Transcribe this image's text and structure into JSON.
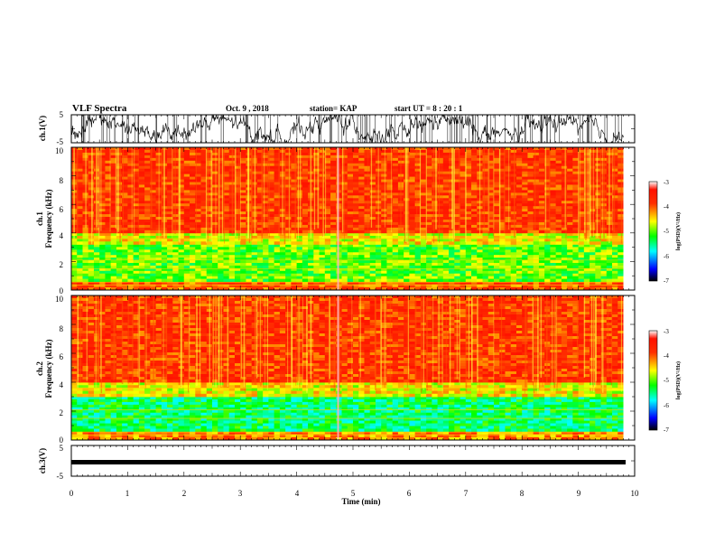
{
  "header": {
    "title": "VLF Spectra",
    "date": "Oct. 9  , 2018",
    "station": "station= KAP",
    "start": "start  UT  =   8  : 20 : 1"
  },
  "panels": {
    "ch1_wave": {
      "ylabel": "ch.1(V)",
      "yticks": [
        "5",
        "-5"
      ]
    },
    "ch1_spec": {
      "ylabel_top": "ch.1",
      "ylabel": "Frequency  (kHz)",
      "yticks": [
        "10",
        "8",
        "6",
        "4",
        "2",
        "0"
      ]
    },
    "ch2_spec": {
      "ylabel_top": "ch.2",
      "ylabel": "Frequency  (kHz)",
      "yticks": [
        "10",
        "8",
        "6",
        "4",
        "2",
        "0"
      ]
    },
    "ch3_wave": {
      "ylabel": "ch.3(V)",
      "yticks": [
        "5",
        "-5"
      ]
    },
    "colorbar": {
      "label": "log(PSD)(V²/Hz)",
      "ticks": [
        "-3",
        "-4",
        "-5",
        "-6",
        "-7"
      ]
    }
  },
  "xaxis": {
    "label": "Time  (min)",
    "ticks": [
      "0",
      "1",
      "2",
      "3",
      "4",
      "5",
      "6",
      "7",
      "8",
      "9",
      "10"
    ]
  },
  "colors": {
    "high": "#ff2a00",
    "mid": "#ffee00",
    "low": "#00e0d0",
    "bottom": "#0010ff",
    "trace": "#000000"
  },
  "chart_data": [
    {
      "type": "line",
      "name": "ch.1 waveform",
      "xlabel": "Time  (min)",
      "ylabel": "ch.1(V)",
      "xlim": [
        0,
        10
      ],
      "ylim": [
        -5,
        5
      ],
      "description_values": "noisy waveform spanning approximately -5 to 5 V, 0 to 9.8 min"
    },
    {
      "type": "heatmap",
      "name": "ch.1 spectrogram",
      "xlabel": "Time  (min)",
      "ylabel": "Frequency  (kHz)",
      "xlim": [
        0,
        9.8
      ],
      "ylim": [
        0,
        10
      ],
      "zlabel": "log(PSD)(V²/Hz)",
      "zlim": [
        -7,
        -3
      ],
      "bands": [
        {
          "f_range": [
            0,
            0.6
          ],
          "log_psd": -4
        },
        {
          "f_range": [
            0.6,
            3.2
          ],
          "log_psd": -5
        },
        {
          "f_range": [
            3.2,
            4.0
          ],
          "log_psd": -4.6
        },
        {
          "f_range": [
            4.0,
            10
          ],
          "log_psd": -3.8
        }
      ]
    },
    {
      "type": "heatmap",
      "name": "ch.2 spectrogram",
      "xlabel": "Time  (min)",
      "ylabel": "Frequency  (kHz)",
      "xlim": [
        0,
        9.8
      ],
      "ylim": [
        0,
        10
      ],
      "zlabel": "log(PSD)(V²/Hz)",
      "zlim": [
        -7,
        -3
      ],
      "bands": [
        {
          "f_range": [
            0,
            0.6
          ],
          "log_psd": -4.2
        },
        {
          "f_range": [
            0.6,
            3.0
          ],
          "log_psd": -5.4
        },
        {
          "f_range": [
            3.0,
            4.0
          ],
          "log_psd": -4.6
        },
        {
          "f_range": [
            4.0,
            10
          ],
          "log_psd": -3.8
        }
      ]
    },
    {
      "type": "line",
      "name": "ch.3 waveform",
      "xlabel": "Time  (min)",
      "ylabel": "ch.3(V)",
      "xlim": [
        0,
        10
      ],
      "ylim": [
        -5,
        5
      ],
      "x": [
        0,
        9.8
      ],
      "y": [
        -1.3,
        -1.3
      ]
    }
  ]
}
